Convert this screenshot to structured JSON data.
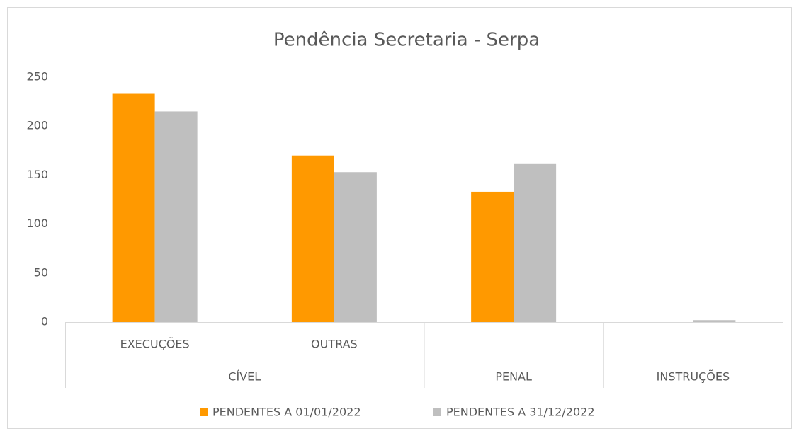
{
  "chart_data": {
    "type": "bar",
    "title": "Pendência Secretaria - Serpa",
    "categories": [
      "EXECUÇÕES",
      "OUTRAS",
      null,
      null
    ],
    "groups": [
      "CÍVEL",
      "CÍVEL",
      "PENAL",
      "INSTRUÇÕES"
    ],
    "series": [
      {
        "name": "PENDENTES A 01/01/2022",
        "color": "#ff9900",
        "values": [
          233,
          170,
          133,
          null
        ]
      },
      {
        "name": "PENDENTES A 31/12/2022",
        "color": "#bfbfbf",
        "values": [
          215,
          153,
          162,
          2
        ]
      }
    ],
    "ylim": [
      0,
      250
    ],
    "yticks": [
      0,
      50,
      100,
      150,
      200,
      250
    ],
    "grid": false,
    "legend": "bottom"
  }
}
